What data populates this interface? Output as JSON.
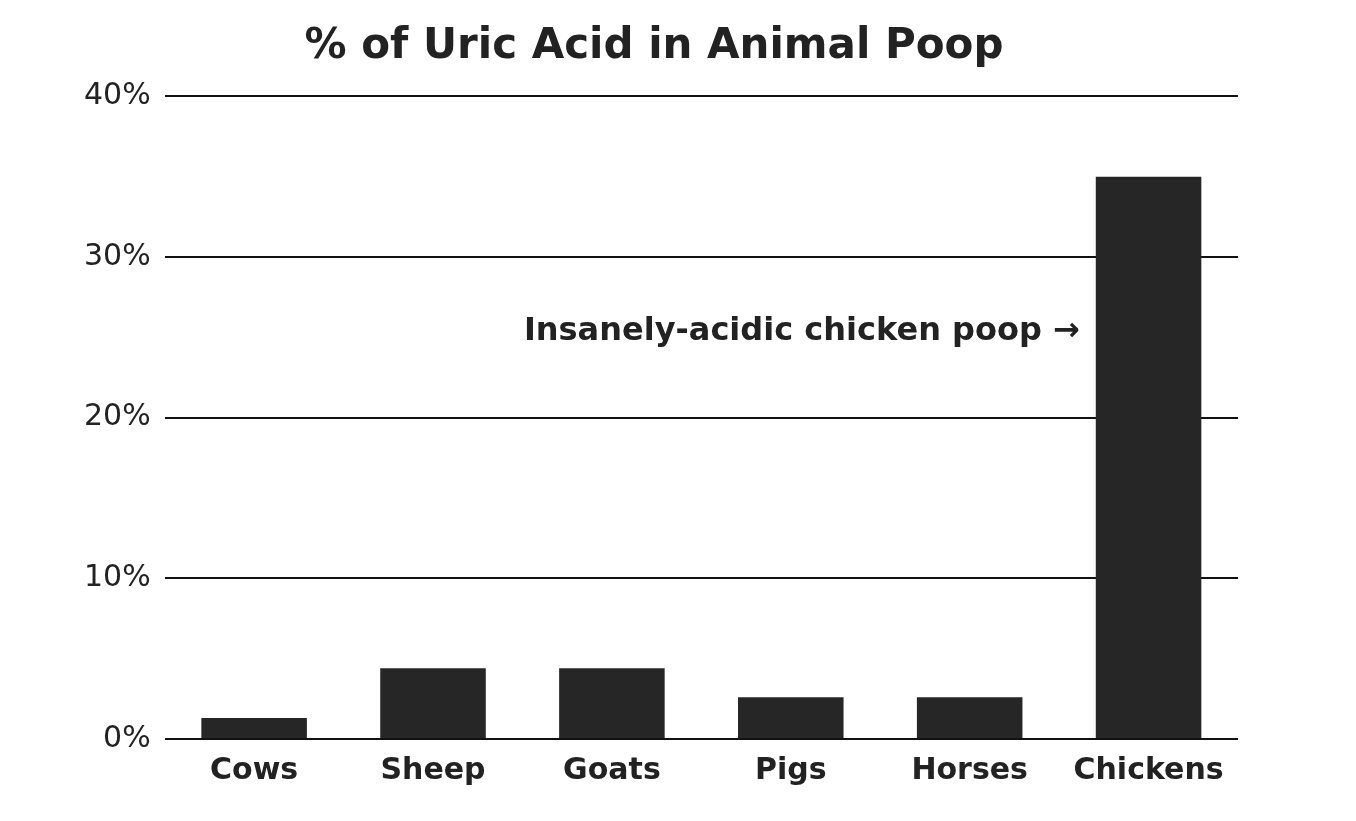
{
  "chart_data": {
    "type": "bar",
    "title": "% of Uric Acid in Animal Poop",
    "categories": [
      "Cows",
      "Sheep",
      "Goats",
      "Pigs",
      "Horses",
      "Chickens"
    ],
    "values": [
      1.3,
      4.4,
      4.4,
      2.6,
      2.6,
      35
    ],
    "color": "#262626",
    "ylim": [
      0,
      40
    ],
    "yticks": [
      {
        "value": 0,
        "label": "0%"
      },
      {
        "value": 10,
        "label": "10%"
      },
      {
        "value": 20,
        "label": "20%"
      },
      {
        "value": 30,
        "label": "30%"
      },
      {
        "value": 40,
        "label": "40%"
      }
    ],
    "grid": true,
    "annotations": [
      "Insanely-acidic chicken poop →"
    ]
  }
}
